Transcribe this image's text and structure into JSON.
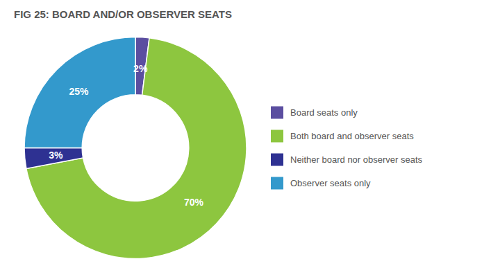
{
  "chart_data": {
    "type": "pie",
    "title": "FIG 25: BOARD AND/OR OBSERVER SEATS",
    "categories": [
      "Board seats only",
      "Both board and observer seats",
      "Neither board nor observer seats",
      "Observer seats only"
    ],
    "values": [
      2,
      70,
      3,
      25
    ],
    "value_labels": [
      "2%",
      "70%",
      "3%",
      "25%"
    ],
    "colors": [
      "#5b4ea0",
      "#8dc63f",
      "#2e3192",
      "#3399cc"
    ],
    "data_labels": true,
    "legend": "right"
  }
}
